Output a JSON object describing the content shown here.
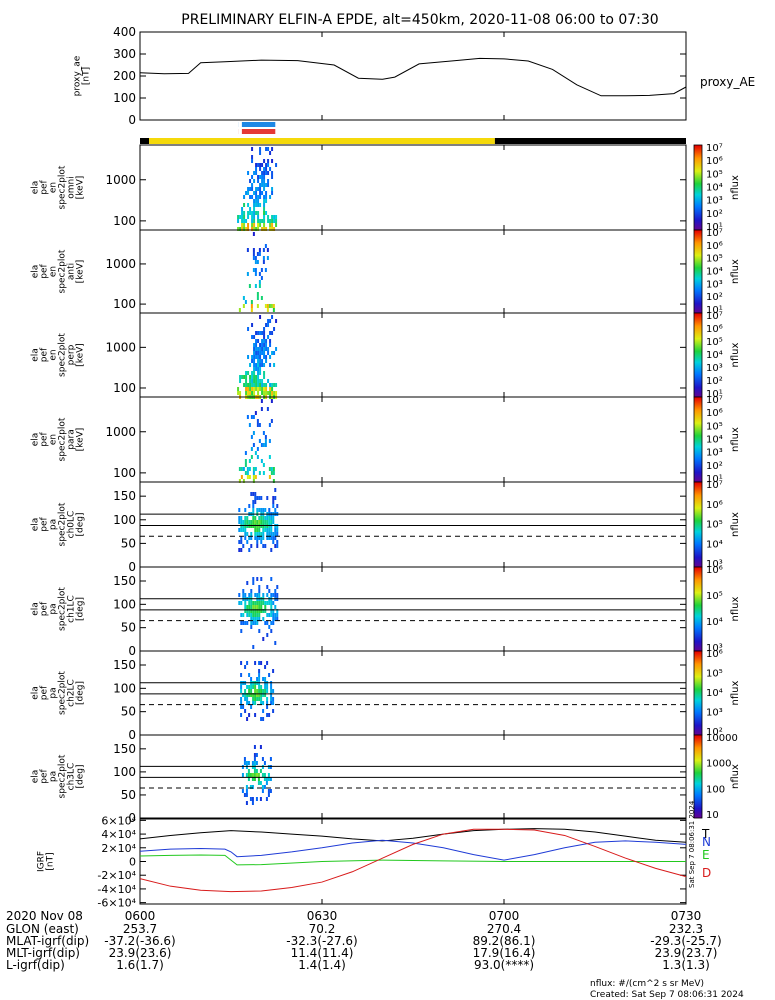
{
  "title": "PRELIMINARY ELFIN-A EPDE, alt=450km, 2020-11-08 06:00 to 07:30",
  "time_axis": {
    "start_label": "2020 Nov 08",
    "ticks": [
      {
        "t": 0,
        "label": "0600"
      },
      {
        "t": 30,
        "label": "0630"
      },
      {
        "t": 60,
        "label": "0700"
      },
      {
        "t": 90,
        "label": "0730"
      }
    ],
    "range_minutes": [
      0,
      90
    ]
  },
  "ephemeris": {
    "rows": [
      {
        "label": "GLON (east)",
        "values": [
          "253.7",
          "70.2",
          "270.4",
          "232.3"
        ]
      },
      {
        "label": "MLAT-igrf(dip)",
        "values": [
          "-37.2(-36.6)",
          "-32.3(-27.6)",
          "89.2(86.1)",
          "-29.3(-25.7)"
        ]
      },
      {
        "label": "MLT-igrf(dip)",
        "values": [
          "23.9(23.6)",
          "11.4(11.4)",
          "17.9(16.4)",
          "23.9(23.7)"
        ]
      },
      {
        "label": "L-igrf(dip)",
        "values": [
          "1.6(1.7)",
          "1.4(1.4)",
          "93.0(****)",
          "1.3(1.3)"
        ]
      }
    ]
  },
  "footer": {
    "units": "nflux: #/(cm^2 s sr MeV)",
    "created": "Created: Sat Sep  7 08:06:31 2024"
  },
  "side_timestamp": "Sat Sep  7 08:06:31 2024",
  "colors": {
    "day_bar": "#f5d90a",
    "night_bar": "#000000",
    "blue_marker": "#1e88e5",
    "red_marker": "#e53935",
    "grf_T": "#000000",
    "grf_N": "#1f3bd6",
    "grf_E": "#22c81e",
    "grf_D": "#d81b1b"
  },
  "chart_data": [
    {
      "type": "line",
      "panel": "proxy_ae",
      "ylabel": "proxy_ae\n[nT]",
      "legend": "proxy_AE",
      "ylim": [
        0,
        400
      ],
      "yticks": [
        0,
        100,
        200,
        300,
        400
      ],
      "x": [
        0,
        4,
        8,
        10,
        14,
        20,
        26,
        32,
        36,
        40,
        42,
        46,
        52,
        56,
        60,
        64,
        68,
        72,
        76,
        80,
        84,
        88,
        90
      ],
      "y": [
        215,
        210,
        212,
        260,
        265,
        272,
        270,
        250,
        190,
        185,
        195,
        255,
        270,
        280,
        278,
        268,
        230,
        160,
        110,
        110,
        112,
        120,
        150
      ]
    },
    {
      "type": "bar",
      "panel": "state_bars",
      "segments": [
        {
          "from": 0,
          "to": 1.5,
          "state": "night"
        },
        {
          "from": 1.5,
          "to": 58.5,
          "state": "day"
        },
        {
          "from": 58.5,
          "to": 90,
          "state": "night"
        }
      ],
      "markers": [
        {
          "from": 16.3,
          "to": 22.3,
          "color": "blue"
        },
        {
          "from": 16.3,
          "to": 22.3,
          "color": "red"
        }
      ]
    },
    {
      "type": "heatmap",
      "panel": "spec_omni",
      "ylabel": "ela\npef\nen\nspec2plot\nomni\n[keV]",
      "yscale": "log",
      "ylim": [
        60,
        7000
      ],
      "yticks": [
        100,
        1000
      ],
      "cbar": {
        "label": "nflux",
        "exps": [
          1,
          2,
          3,
          4,
          5,
          6,
          7
        ]
      },
      "x_range": [
        16,
        22.5
      ],
      "density": 0.8
    },
    {
      "type": "heatmap",
      "panel": "spec_anti",
      "ylabel": "ela\npef\nen\nspec2plot\nanti\n[keV]",
      "yscale": "log",
      "ylim": [
        60,
        7000
      ],
      "yticks": [
        100,
        1000
      ],
      "cbar": {
        "label": "nflux",
        "exps": [
          1,
          2,
          3,
          4,
          5,
          6,
          7
        ]
      },
      "x_range": [
        16.3,
        22
      ],
      "density": 0.3
    },
    {
      "type": "heatmap",
      "panel": "spec_perp",
      "ylabel": "ela\npef\nen\nspec2plot\nperp\n[keV]",
      "yscale": "log",
      "ylim": [
        60,
        7000
      ],
      "yticks": [
        100,
        1000
      ],
      "cbar": {
        "label": "nflux",
        "exps": [
          1,
          2,
          3,
          4,
          5,
          6,
          7
        ]
      },
      "x_range": [
        16,
        22.5
      ],
      "density": 0.8
    },
    {
      "type": "heatmap",
      "panel": "spec_para",
      "ylabel": "ela\npef\nen\nspec2plot\npara\n[keV]",
      "yscale": "log",
      "ylim": [
        60,
        7000
      ],
      "yticks": [
        100,
        1000
      ],
      "cbar": {
        "label": "nflux",
        "exps": [
          1,
          2,
          3,
          4,
          5,
          6,
          7
        ]
      },
      "x_range": [
        16.3,
        22
      ],
      "density": 0.3
    },
    {
      "type": "heatmap",
      "panel": "pa_ch0",
      "ylabel": "ela\npef\npa\nspec2plot\nch0LC\n[deg]",
      "ylim": [
        0,
        180
      ],
      "yticks": [
        0,
        50,
        100,
        150
      ],
      "lines": [
        112,
        88
      ],
      "dashed": 65,
      "cbar": {
        "label": "nflux",
        "exps": [
          3,
          4,
          5,
          6,
          7
        ]
      },
      "x_range": [
        16.2,
        22.6
      ],
      "density": 0.85
    },
    {
      "type": "heatmap",
      "panel": "pa_ch1",
      "ylabel": "ela\npef\npa\nspec2plot\nch1LC\n[deg]",
      "ylim": [
        0,
        180
      ],
      "yticks": [
        0,
        50,
        100,
        150
      ],
      "lines": [
        112,
        88
      ],
      "dashed": 65,
      "cbar": {
        "label": "nflux",
        "exps": [
          3,
          4,
          5,
          6
        ]
      },
      "x_range": [
        16.2,
        22.6
      ],
      "density": 0.8
    },
    {
      "type": "heatmap",
      "panel": "pa_ch2",
      "ylabel": "ela\npef\npa\nspec2plot\nch2LC\n[deg]",
      "ylim": [
        0,
        180
      ],
      "yticks": [
        0,
        50,
        100,
        150
      ],
      "lines": [
        112,
        88
      ],
      "dashed": 65,
      "cbar": {
        "label": "nflux",
        "exps": [
          2,
          3,
          4,
          5,
          6
        ]
      },
      "x_range": [
        16.5,
        21.8
      ],
      "density": 0.7
    },
    {
      "type": "heatmap",
      "panel": "pa_ch3",
      "ylabel": "ela\npef\npa\nspec2plot\nch3LC\n[deg]",
      "ylim": [
        0,
        180
      ],
      "yticks": [
        0,
        50,
        100,
        150
      ],
      "lines": [
        112,
        88
      ],
      "dashed": 65,
      "cbar": {
        "label": "nflux",
        "ticks": [
          "10",
          "100",
          "1000",
          "10000"
        ]
      },
      "x_range": [
        16.8,
        21.5
      ],
      "density": 0.55
    },
    {
      "type": "line",
      "panel": "igrf",
      "ylabel": "IGRF\n[nT]",
      "ylim": [
        -62000,
        62000
      ],
      "yticks": [
        -60000,
        -40000,
        -20000,
        0,
        20000,
        40000,
        60000
      ],
      "ytick_labels": [
        "-6×10⁴",
        "-4×10⁴",
        "-2×10⁴",
        "0",
        "2×10⁴",
        "4×10⁴",
        "6×10⁴"
      ],
      "series": [
        {
          "name": "T",
          "x": [
            0,
            5,
            10,
            15,
            20,
            25,
            30,
            35,
            40,
            45,
            50,
            55,
            60,
            65,
            70,
            75,
            80,
            85,
            90
          ],
          "y": [
            33000,
            38000,
            42000,
            45000,
            43000,
            40000,
            37000,
            33000,
            30000,
            34000,
            40000,
            45000,
            47000,
            48000,
            47000,
            43000,
            37000,
            31000,
            28000
          ]
        },
        {
          "name": "N",
          "x": [
            0,
            5,
            10,
            14,
            15,
            16,
            20,
            25,
            30,
            35,
            40,
            45,
            50,
            55,
            60,
            65,
            70,
            75,
            80,
            85,
            90
          ],
          "y": [
            15000,
            18000,
            19000,
            18000,
            14000,
            7000,
            9000,
            14000,
            20000,
            27000,
            31000,
            27000,
            20000,
            10000,
            2000,
            10000,
            20000,
            28000,
            30000,
            28000,
            25000
          ]
        },
        {
          "name": "E",
          "x": [
            0,
            5,
            10,
            14,
            15,
            16,
            20,
            30,
            40,
            50,
            60,
            70,
            80,
            90
          ],
          "y": [
            8000,
            9000,
            9500,
            9000,
            2000,
            -5000,
            -4500,
            0,
            2000,
            1000,
            0,
            0,
            0,
            0
          ]
        },
        {
          "name": "D",
          "x": [
            0,
            5,
            10,
            15,
            20,
            25,
            30,
            35,
            40,
            45,
            50,
            55,
            60,
            65,
            70,
            75,
            80,
            85,
            90
          ],
          "y": [
            -25000,
            -36000,
            -42000,
            -44000,
            -43000,
            -38000,
            -30000,
            -15000,
            5000,
            25000,
            40000,
            47000,
            47000,
            46000,
            38000,
            22000,
            5000,
            -10000,
            -22000
          ]
        }
      ]
    }
  ]
}
